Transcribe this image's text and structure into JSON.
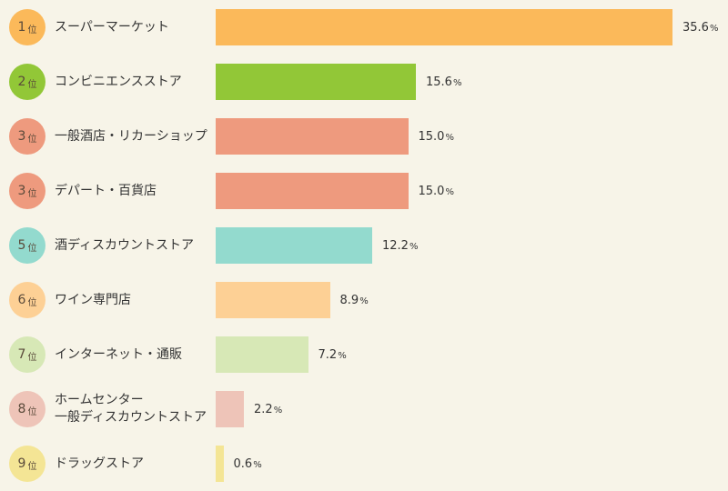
{
  "chart_data": {
    "type": "bar",
    "orientation": "horizontal",
    "rank_suffix": "位",
    "unit": "%",
    "categories": [
      {
        "rank": "1",
        "label": [
          "スーパーマーケット"
        ],
        "value": 35.6,
        "display": "35.6",
        "color": "#fbb95a"
      },
      {
        "rank": "2",
        "label": [
          "コンビニエンスストア"
        ],
        "value": 15.6,
        "display": "15.6",
        "color": "#92c737"
      },
      {
        "rank": "3",
        "label": [
          "一般酒店・リカーショップ"
        ],
        "value": 15.0,
        "display": "15.0",
        "color": "#ee9a7e"
      },
      {
        "rank": "3",
        "label": [
          "デパート・百貨店"
        ],
        "value": 15.0,
        "display": "15.0",
        "color": "#ee9a7e"
      },
      {
        "rank": "5",
        "label": [
          "酒ディスカウントストア"
        ],
        "value": 12.2,
        "display": "12.2",
        "color": "#93dace"
      },
      {
        "rank": "6",
        "label": [
          "ワイン専門店"
        ],
        "value": 8.9,
        "display": "8.9",
        "color": "#fdd095"
      },
      {
        "rank": "7",
        "label": [
          "インターネット・通販"
        ],
        "value": 7.2,
        "display": "7.2",
        "color": "#d7e8b6"
      },
      {
        "rank": "8",
        "label": [
          "ホームセンター",
          "一般ディスカウントストア"
        ],
        "value": 2.2,
        "display": "2.2",
        "color": "#eec4b8"
      },
      {
        "rank": "9",
        "label": [
          "ドラッグストア"
        ],
        "value": 0.6,
        "display": "0.6",
        "color": "#f4e595"
      }
    ]
  }
}
